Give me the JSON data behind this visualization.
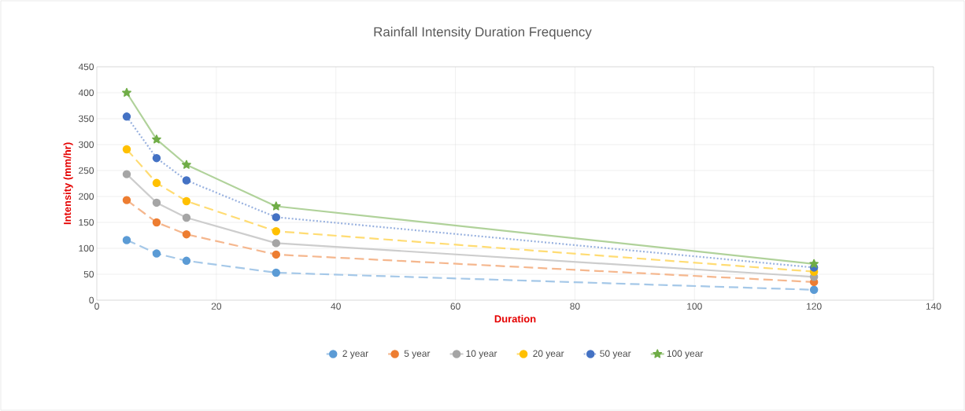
{
  "chart_data": {
    "type": "line",
    "title": "Rainfall Intensity Duration Frequency",
    "xlabel": "Duration",
    "ylabel": "Intensity (mm/hr)",
    "x": [
      5,
      10,
      15,
      30,
      120
    ],
    "series": [
      {
        "name": "2 year",
        "color": "#5b9bd5",
        "line_style": "dashed",
        "marker": "circle",
        "values": [
          116,
          90,
          76,
          53,
          20
        ]
      },
      {
        "name": "5 year",
        "color": "#ed7d31",
        "line_style": "dashed",
        "marker": "circle",
        "values": [
          193,
          150,
          127,
          88,
          35
        ]
      },
      {
        "name": "10 year",
        "color": "#a5a5a5",
        "line_style": "solid",
        "marker": "circle",
        "values": [
          243,
          188,
          159,
          110,
          45
        ]
      },
      {
        "name": "20 year",
        "color": "#ffc000",
        "line_style": "dashed",
        "marker": "circle",
        "values": [
          291,
          226,
          191,
          133,
          55
        ]
      },
      {
        "name": "50 year",
        "color": "#4472c4",
        "line_style": "dotted",
        "marker": "circle",
        "values": [
          354,
          274,
          231,
          160,
          63
        ]
      },
      {
        "name": "100 year",
        "color": "#70ad47",
        "line_style": "solid",
        "marker": "star",
        "values": [
          400,
          310,
          261,
          181,
          70
        ]
      }
    ],
    "xlim": [
      0,
      140
    ],
    "xticks": [
      0,
      20,
      40,
      60,
      80,
      100,
      120,
      140
    ],
    "ylim": [
      0,
      450
    ],
    "yticks": [
      0,
      50,
      100,
      150,
      200,
      250,
      300,
      350,
      400,
      450
    ],
    "grid": true,
    "legend": "bottom"
  }
}
